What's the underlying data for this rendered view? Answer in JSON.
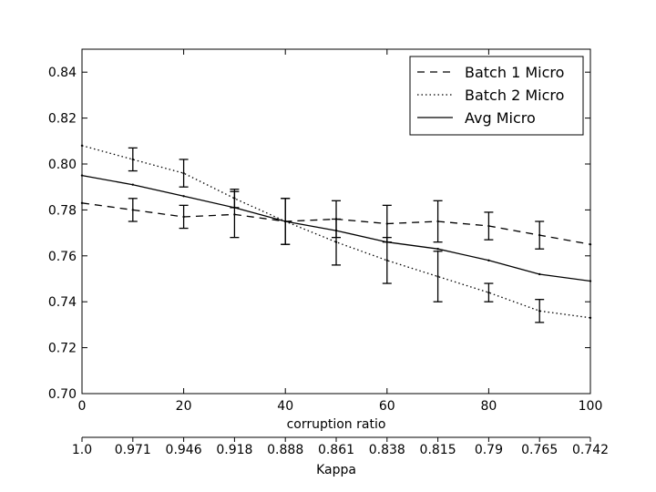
{
  "chart_data": {
    "type": "line",
    "x": [
      0,
      10,
      20,
      30,
      40,
      50,
      60,
      70,
      80,
      90,
      100
    ],
    "xlim": [
      0,
      100
    ],
    "ylim": [
      0.7,
      0.85
    ],
    "xticks": [
      "0",
      "20",
      "40",
      "60",
      "80",
      "100"
    ],
    "yticks": [
      "0.70",
      "0.72",
      "0.74",
      "0.76",
      "0.78",
      "0.80",
      "0.82",
      "0.84"
    ],
    "xlabel": "corruption ratio",
    "secondary_axis": {
      "label": "Kappa",
      "ticks": [
        "1.0",
        "0.971",
        "0.946",
        "0.918",
        "0.888",
        "0.861",
        "0.838",
        "0.815",
        "0.79",
        "0.765",
        "0.742"
      ]
    },
    "grid": false,
    "legend": "top-right",
    "series": [
      {
        "name": "Batch 1 Micro",
        "style": "dashed",
        "values": [
          0.783,
          0.78,
          0.777,
          0.778,
          0.775,
          0.776,
          0.774,
          0.775,
          0.773,
          0.769,
          0.765
        ],
        "errors": [
          null,
          0.005,
          0.005,
          0.01,
          0.01,
          0.008,
          0.008,
          0.009,
          0.006,
          0.006,
          null
        ]
      },
      {
        "name": "Batch 2 Micro",
        "style": "dotted",
        "values": [
          0.808,
          0.802,
          0.796,
          0.785,
          0.775,
          0.766,
          0.758,
          0.751,
          0.744,
          0.736,
          0.733
        ],
        "errors": [
          null,
          0.005,
          0.006,
          0.004,
          0.01,
          0.01,
          0.01,
          0.011,
          0.004,
          0.005,
          null
        ]
      },
      {
        "name": "Avg Micro",
        "style": "solid",
        "values": [
          0.795,
          0.791,
          0.786,
          0.781,
          0.775,
          0.771,
          0.766,
          0.763,
          0.758,
          0.752,
          0.749
        ],
        "errors": []
      }
    ]
  }
}
